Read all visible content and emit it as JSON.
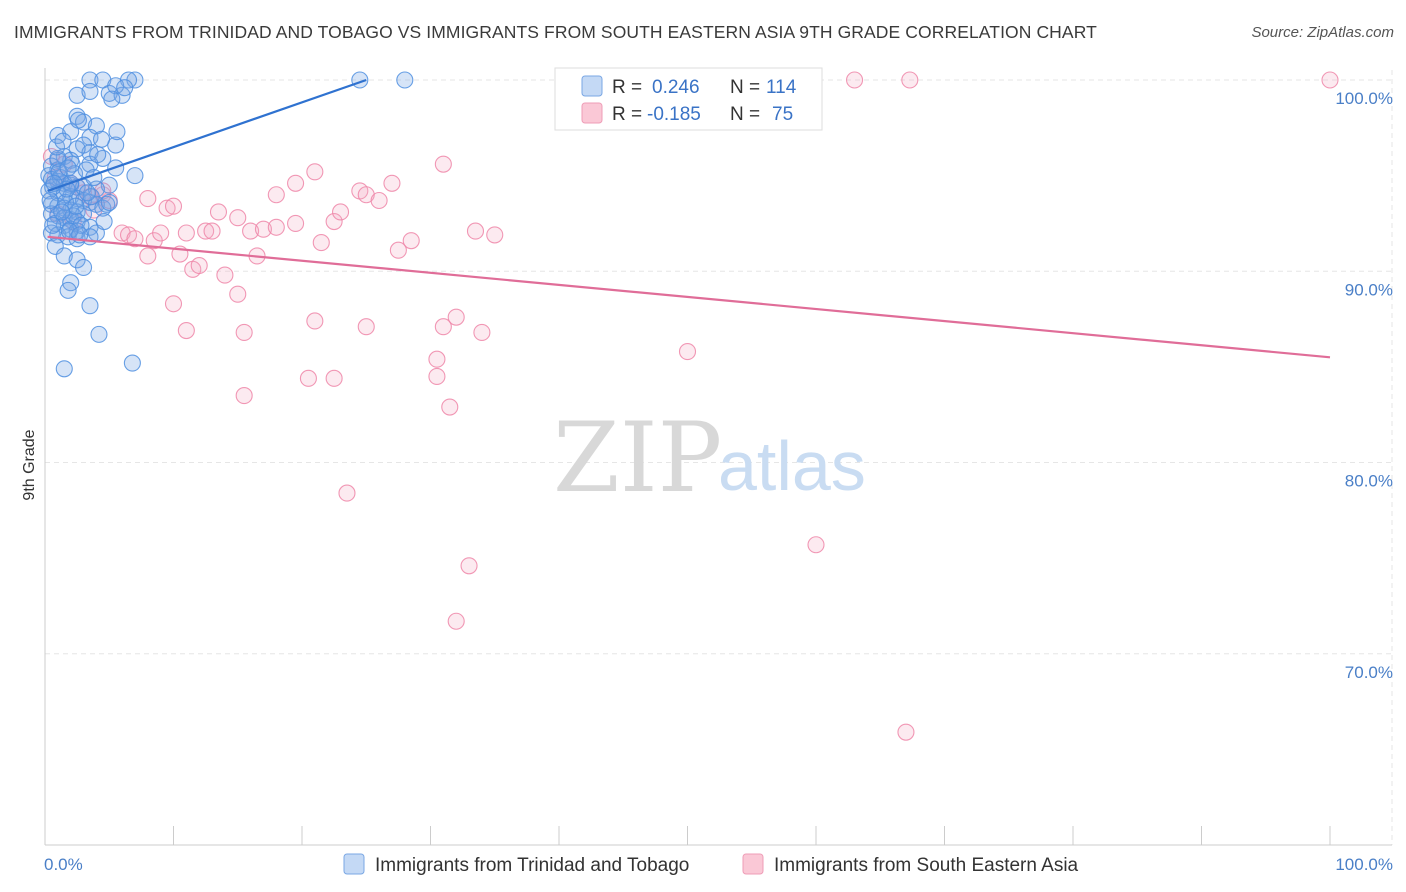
{
  "title": "IMMIGRANTS FROM TRINIDAD AND TOBAGO VS IMMIGRANTS FROM SOUTH EASTERN ASIA 9TH GRADE CORRELATION CHART",
  "source": "Source: ZipAtlas.com",
  "watermark": {
    "zip": "ZIP",
    "atlas": "atlas"
  },
  "legend": {
    "rows": [
      {
        "r_label": "R =",
        "r_value": "0.246",
        "n_label": "N =",
        "n_value": "114"
      },
      {
        "r_label": "R =",
        "r_value": "-0.185",
        "n_label": "N =",
        "n_value": "75"
      }
    ]
  },
  "chart_data": {
    "type": "scatter",
    "title": "IMMIGRANTS FROM TRINIDAD AND TOBAGO VS IMMIGRANTS FROM SOUTH EASTERN ASIA 9TH GRADE CORRELATION CHART",
    "xlabel": "",
    "ylabel": "9th Grade",
    "xlim": [
      0,
      100
    ],
    "ylim": [
      60,
      100
    ],
    "x_tick_labels": [
      "0.0%",
      "100.0%"
    ],
    "y_ticks": [
      {
        "value": 100,
        "label": "100.0%"
      },
      {
        "value": 90,
        "label": "90.0%"
      },
      {
        "value": 80,
        "label": "80.0%"
      },
      {
        "value": 70,
        "label": "70.0%"
      }
    ],
    "grid": true,
    "legend_position": "bottom",
    "colors": {
      "blue": "#4f8fe0",
      "pink": "#ee86a8",
      "blue_line": "#2f72d0",
      "pink_line": "#e06d98"
    },
    "series": [
      {
        "name": "Immigrants from Trinidad and Tobago",
        "color": "#4f8fe0",
        "r": 0.246,
        "n": 114,
        "trend": [
          [
            0.2,
            94.2
          ],
          [
            25,
            100.0
          ]
        ],
        "points": [
          [
            3.5,
            100
          ],
          [
            4.5,
            100
          ],
          [
            7,
            100
          ],
          [
            6.5,
            100
          ],
          [
            2.5,
            99.2
          ],
          [
            3.5,
            99.4
          ],
          [
            5,
            99.3
          ],
          [
            6,
            99.2
          ],
          [
            5.5,
            99.7
          ],
          [
            2.5,
            98.1
          ],
          [
            3,
            97.8
          ],
          [
            4,
            97.6
          ],
          [
            3.5,
            97.0
          ],
          [
            1,
            97.1
          ],
          [
            2,
            97.3
          ],
          [
            3,
            96.6
          ],
          [
            5.5,
            96.6
          ],
          [
            3.5,
            96.2
          ],
          [
            2.5,
            96.4
          ],
          [
            1.5,
            96.0
          ],
          [
            2,
            95.8
          ],
          [
            1,
            95.8
          ],
          [
            0.5,
            95.5
          ],
          [
            1,
            95.3
          ],
          [
            0.3,
            95.0
          ],
          [
            0.5,
            94.8
          ],
          [
            1,
            94.7
          ],
          [
            1.5,
            94.6
          ],
          [
            2,
            94.5
          ],
          [
            2.5,
            94.4
          ],
          [
            3,
            94.4
          ],
          [
            0.3,
            94.2
          ],
          [
            1,
            94.1
          ],
          [
            1.5,
            94.0
          ],
          [
            2,
            93.9
          ],
          [
            2.5,
            93.8
          ],
          [
            3,
            93.7
          ],
          [
            3.5,
            93.6
          ],
          [
            4,
            93.5
          ],
          [
            0.5,
            93.5
          ],
          [
            1,
            93.4
          ],
          [
            1.5,
            93.3
          ],
          [
            2,
            93.2
          ],
          [
            2.5,
            93.1
          ],
          [
            3,
            93.0
          ],
          [
            0.5,
            93.0
          ],
          [
            1,
            92.9
          ],
          [
            1.5,
            92.8
          ],
          [
            2,
            92.7
          ],
          [
            2.5,
            92.6
          ],
          [
            0.8,
            92.5
          ],
          [
            1.5,
            92.4
          ],
          [
            2,
            92.2
          ],
          [
            2.5,
            92.1
          ],
          [
            3.5,
            92.3
          ],
          [
            4,
            92.0
          ],
          [
            0.5,
            92.0
          ],
          [
            1,
            91.9
          ],
          [
            1.8,
            91.8
          ],
          [
            2.5,
            91.7
          ],
          [
            3.5,
            91.8
          ],
          [
            0.8,
            91.3
          ],
          [
            1.5,
            90.8
          ],
          [
            2.5,
            90.6
          ],
          [
            3,
            90.2
          ],
          [
            2,
            89.4
          ],
          [
            1.8,
            89.0
          ],
          [
            3.5,
            88.2
          ],
          [
            4.2,
            86.7
          ],
          [
            1.5,
            84.9
          ],
          [
            6.8,
            85.2
          ],
          [
            7,
            95.0
          ],
          [
            5.5,
            95.4
          ],
          [
            4.5,
            95.9
          ],
          [
            3.5,
            95.6
          ],
          [
            5,
            94.5
          ],
          [
            4,
            94.3
          ],
          [
            4.5,
            93.3
          ],
          [
            4.8,
            93.5
          ],
          [
            5,
            93.6
          ],
          [
            1,
            95.9
          ],
          [
            1.2,
            94.9
          ],
          [
            2,
            94.6
          ],
          [
            2.3,
            95.1
          ],
          [
            0.6,
            94.4
          ],
          [
            1.6,
            93.6
          ],
          [
            2.2,
            92.9
          ],
          [
            2.8,
            92.4
          ],
          [
            0.4,
            93.7
          ],
          [
            1.7,
            94.3
          ],
          [
            2.1,
            95.6
          ],
          [
            3.2,
            95.3
          ],
          [
            4.1,
            96.1
          ],
          [
            3.8,
            94.9
          ],
          [
            0.9,
            96.5
          ],
          [
            1.4,
            96.8
          ],
          [
            2.6,
            97.9
          ],
          [
            1.1,
            95.2
          ],
          [
            0.7,
            94.6
          ],
          [
            2.4,
            93.4
          ],
          [
            3.6,
            93.9
          ],
          [
            1.9,
            92.1
          ],
          [
            2.7,
            91.9
          ],
          [
            0.6,
            92.4
          ],
          [
            1.3,
            93.1
          ],
          [
            4.4,
            96.9
          ],
          [
            5.6,
            97.3
          ],
          [
            6.2,
            99.6
          ],
          [
            5.2,
            99.0
          ],
          [
            28,
            100
          ],
          [
            24.5,
            100
          ],
          [
            1.8,
            95.4
          ],
          [
            3.3,
            94.1
          ],
          [
            4.6,
            92.6
          ]
        ]
      },
      {
        "name": "Immigrants from South Eastern Asia",
        "color": "#ee86a8",
        "r": -0.185,
        "n": 75,
        "trend": [
          [
            0.2,
            91.8
          ],
          [
            100,
            85.5
          ]
        ],
        "points": [
          [
            63,
            100
          ],
          [
            67.3,
            100
          ],
          [
            100,
            100
          ],
          [
            0.5,
            96.0
          ],
          [
            1.5,
            95.6
          ],
          [
            0.8,
            94.9
          ],
          [
            2,
            94.6
          ],
          [
            2.5,
            94.4
          ],
          [
            3,
            94.1
          ],
          [
            4.5,
            94.0
          ],
          [
            3.5,
            93.9
          ],
          [
            5,
            93.7
          ],
          [
            3.8,
            93.2
          ],
          [
            1,
            93.0
          ],
          [
            2.2,
            92.6
          ],
          [
            6,
            92.0
          ],
          [
            6.5,
            91.9
          ],
          [
            7,
            91.7
          ],
          [
            8.5,
            91.6
          ],
          [
            9,
            92.0
          ],
          [
            11,
            92.0
          ],
          [
            12.5,
            92.1
          ],
          [
            13,
            92.1
          ],
          [
            9.5,
            93.3
          ],
          [
            10,
            93.4
          ],
          [
            13.5,
            93.1
          ],
          [
            15,
            92.8
          ],
          [
            16,
            92.1
          ],
          [
            17,
            92.2
          ],
          [
            18,
            92.3
          ],
          [
            19.5,
            92.5
          ],
          [
            21.5,
            91.5
          ],
          [
            22.5,
            92.6
          ],
          [
            23,
            93.1
          ],
          [
            24.5,
            94.2
          ],
          [
            25,
            94.0
          ],
          [
            26,
            93.7
          ],
          [
            27,
            94.6
          ],
          [
            28.5,
            91.6
          ],
          [
            27.5,
            91.1
          ],
          [
            21,
            95.2
          ],
          [
            19.5,
            94.6
          ],
          [
            18,
            94.0
          ],
          [
            31,
            95.6
          ],
          [
            33.5,
            92.1
          ],
          [
            35,
            91.9
          ],
          [
            8,
            90.8
          ],
          [
            10.5,
            90.9
          ],
          [
            11.5,
            90.1
          ],
          [
            12,
            90.3
          ],
          [
            14,
            89.8
          ],
          [
            15,
            88.8
          ],
          [
            16.5,
            90.8
          ],
          [
            10,
            88.3
          ],
          [
            11,
            86.9
          ],
          [
            15.5,
            86.8
          ],
          [
            21,
            87.4
          ],
          [
            25,
            87.1
          ],
          [
            31,
            87.1
          ],
          [
            32,
            87.6
          ],
          [
            34,
            86.8
          ],
          [
            50,
            85.8
          ],
          [
            30.5,
            85.4
          ],
          [
            15.5,
            83.5
          ],
          [
            20.5,
            84.4
          ],
          [
            22.5,
            84.4
          ],
          [
            30.5,
            84.5
          ],
          [
            31.5,
            82.9
          ],
          [
            23.5,
            78.4
          ],
          [
            33,
            74.6
          ],
          [
            32,
            71.7
          ],
          [
            60,
            75.7
          ],
          [
            67,
            65.9
          ],
          [
            4.5,
            94.2
          ],
          [
            8,
            93.8
          ]
        ]
      }
    ]
  },
  "bottom_legend": [
    {
      "label": "Immigrants from Trinidad and Tobago"
    },
    {
      "label": "Immigrants from South Eastern Asia"
    }
  ]
}
